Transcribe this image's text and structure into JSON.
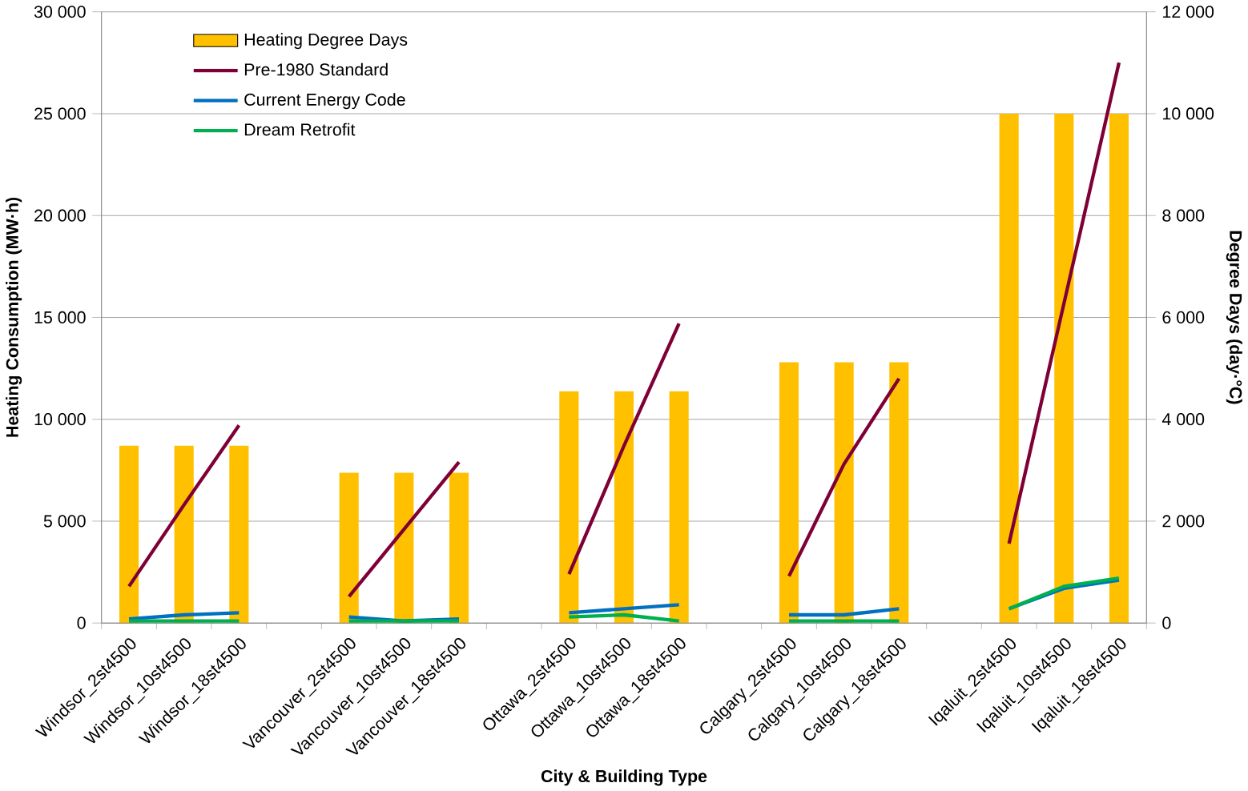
{
  "chart_data": {
    "type": "bar",
    "xlabel": "City & Building Type",
    "ylabel": "Heating Consumption (MW·h)",
    "y2label": "Degree Days (day·°C)",
    "categories": [
      "Windsor_2st4500",
      "Windsor_10st4500",
      "Windsor_18st4500",
      null,
      "Vancouver_2st4500",
      "Vancouver_10st4500",
      "Vancouver_18st4500",
      null,
      "Ottawa_2st4500",
      "Ottawa_10st4500",
      "Ottawa_18st4500",
      null,
      "Calgary_2st4500",
      "Calgary_10st4500",
      "Calgary_18st4500",
      null,
      "Iqaluit_2st4500",
      "Iqaluit_10st4500",
      "Iqaluit_18st4500"
    ],
    "series": [
      {
        "name": "Heating Degree Days",
        "axis": "y2",
        "color": "#ffc000",
        "values": [
          3480,
          3480,
          3480,
          null,
          2950,
          2950,
          2950,
          null,
          4550,
          4550,
          4550,
          null,
          5120,
          5120,
          5120,
          null,
          10000,
          10000,
          10000
        ]
      },
      {
        "name": "Pre-1980 Standard",
        "type": "line",
        "color": "#7f0037",
        "values": [
          1800,
          5800,
          9700,
          null,
          1300,
          4600,
          7900,
          null,
          2400,
          8700,
          14700,
          null,
          2300,
          7800,
          12000,
          null,
          3900,
          15700,
          27500
        ]
      },
      {
        "name": "Current Energy Code",
        "type": "line",
        "color": "#0070c0",
        "values": [
          200,
          400,
          500,
          null,
          300,
          100,
          200,
          null,
          500,
          700,
          900,
          null,
          400,
          400,
          700,
          null,
          700,
          1700,
          2100
        ]
      },
      {
        "name": "Dream Retrofit",
        "type": "line",
        "color": "#00b050",
        "values": [
          100,
          100,
          100,
          null,
          100,
          100,
          100,
          null,
          300,
          400,
          100,
          null,
          100,
          100,
          100,
          null,
          700,
          1800,
          2200
        ]
      }
    ],
    "ylim": [
      0,
      30000
    ],
    "yticks": [
      0,
      {
        "value": 5000,
        "label": "5 000"
      },
      {
        "value": 10000,
        "label": "10 000"
      },
      {
        "value": 15000,
        "label": "15 000"
      },
      {
        "value": 20000,
        "label": "20 000"
      },
      {
        "value": 25000,
        "label": "25 000"
      },
      {
        "value": 30000,
        "label": "30 000"
      }
    ],
    "y2lim": [
      0,
      12000
    ],
    "y2ticks": [
      0,
      {
        "value": 2000,
        "label": "2 000"
      },
      {
        "value": 4000,
        "label": "4 000"
      },
      {
        "value": 6000,
        "label": "6 000"
      },
      {
        "value": 8000,
        "label": "8 000"
      },
      {
        "value": 10000,
        "label": "10 000"
      },
      {
        "value": 12000,
        "label": "12 000"
      }
    ],
    "grid": "y",
    "legend": "top left"
  }
}
